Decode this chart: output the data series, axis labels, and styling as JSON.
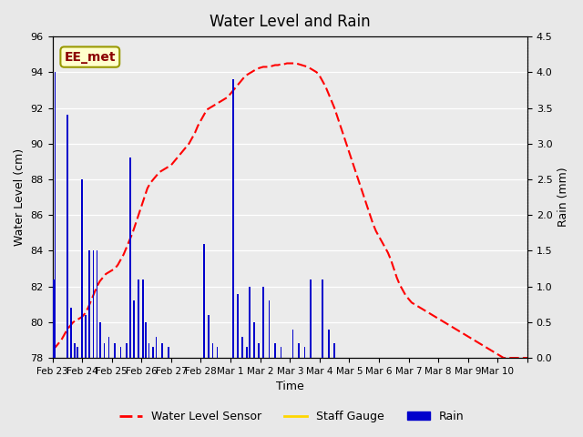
{
  "title": "Water Level and Rain",
  "xlabel": "Time",
  "ylabel_left": "Water Level (cm)",
  "ylabel_right": "Rain (mm)",
  "annotation_text": "EE_met",
  "annotation_color": "#8B0000",
  "annotation_bg": "#FFFFCC",
  "annotation_edge": "#999900",
  "ylim_left": [
    78,
    96
  ],
  "ylim_right": [
    0.0,
    4.5
  ],
  "yticks_left": [
    78,
    80,
    82,
    84,
    86,
    88,
    90,
    92,
    94,
    96
  ],
  "yticks_right": [
    0.0,
    0.5,
    1.0,
    1.5,
    2.0,
    2.5,
    3.0,
    3.5,
    4.0,
    4.5
  ],
  "bg_color": "#E8E8E8",
  "plot_bg_color": "#EBEBEB",
  "water_level_color": "#FF0000",
  "rain_color": "#0000CC",
  "staff_gauge_color": "#FFD700",
  "water_level_data": {
    "x": [
      0.0,
      0.1,
      0.2,
      0.3,
      0.4,
      0.5,
      0.6,
      0.7,
      0.8,
      0.9,
      1.0,
      1.1,
      1.2,
      1.3,
      1.4,
      1.5,
      1.6,
      1.7,
      1.8,
      1.9,
      2.0,
      2.1,
      2.2,
      2.3,
      2.4,
      2.5,
      2.6,
      2.7,
      2.8,
      2.9,
      3.0,
      3.1,
      3.2,
      3.3,
      3.4,
      3.5,
      3.6,
      3.7,
      3.8,
      3.9,
      4.0,
      4.1,
      4.2,
      4.3,
      4.4,
      4.5,
      4.6,
      4.7,
      4.8,
      4.9,
      5.0,
      5.1,
      5.2,
      5.3,
      5.4,
      5.5,
      5.6,
      5.7,
      5.8,
      5.9,
      6.0,
      6.1,
      6.2,
      6.3,
      6.4,
      6.5,
      6.6,
      6.7,
      6.8,
      6.9,
      7.0,
      7.1,
      7.2,
      7.3,
      7.4,
      7.5,
      7.6,
      7.7,
      7.8,
      7.9,
      8.0,
      8.1,
      8.2,
      8.3,
      8.4,
      8.5,
      8.6,
      8.7,
      8.8,
      8.9,
      9.0,
      9.1,
      9.2,
      9.3,
      9.4,
      9.5,
      9.6,
      9.7,
      9.8,
      9.9,
      10.0,
      10.1,
      10.2,
      10.3,
      10.4,
      10.5,
      10.6,
      10.7,
      10.8,
      10.9,
      11.0,
      11.1,
      11.2,
      11.3,
      11.4,
      11.5,
      11.6,
      11.7,
      11.8,
      11.9,
      12.0,
      12.1,
      12.2,
      12.3,
      12.4,
      12.5,
      12.6,
      12.7,
      12.8,
      12.9,
      13.0,
      13.1,
      13.2,
      13.3,
      13.4,
      13.5,
      13.6,
      13.7,
      13.8,
      13.9,
      14.0,
      14.1,
      14.2,
      14.3,
      14.4,
      14.5,
      14.6,
      14.7,
      14.8,
      14.9,
      15.0,
      15.1,
      15.2,
      15.3,
      15.4,
      15.5,
      15.6,
      15.7,
      15.8,
      15.9,
      16.0
    ],
    "y": [
      78.5,
      78.6,
      78.8,
      79.0,
      79.3,
      79.6,
      79.8,
      80.0,
      80.1,
      80.2,
      80.3,
      80.5,
      80.8,
      81.2,
      81.6,
      82.0,
      82.3,
      82.5,
      82.7,
      82.8,
      82.9,
      83.0,
      83.2,
      83.5,
      83.8,
      84.2,
      84.6,
      85.0,
      85.5,
      86.0,
      86.5,
      87.0,
      87.5,
      87.8,
      88.0,
      88.2,
      88.4,
      88.5,
      88.6,
      88.7,
      88.8,
      89.0,
      89.2,
      89.4,
      89.6,
      89.8,
      90.0,
      90.3,
      90.6,
      91.0,
      91.3,
      91.6,
      91.9,
      92.0,
      92.1,
      92.2,
      92.3,
      92.4,
      92.5,
      92.6,
      92.8,
      93.0,
      93.2,
      93.4,
      93.6,
      93.8,
      93.9,
      94.0,
      94.1,
      94.2,
      94.25,
      94.3,
      94.3,
      94.3,
      94.35,
      94.4,
      94.4,
      94.45,
      94.45,
      94.5,
      94.5,
      94.5,
      94.5,
      94.45,
      94.4,
      94.35,
      94.3,
      94.2,
      94.1,
      94.0,
      93.8,
      93.5,
      93.2,
      92.8,
      92.4,
      92.0,
      91.5,
      91.0,
      90.5,
      90.0,
      89.5,
      89.0,
      88.5,
      88.0,
      87.5,
      87.0,
      86.5,
      86.0,
      85.5,
      85.1,
      84.8,
      84.5,
      84.2,
      83.9,
      83.5,
      83.0,
      82.5,
      82.1,
      81.8,
      81.5,
      81.3,
      81.1,
      81.0,
      80.9,
      80.8,
      80.7,
      80.6,
      80.5,
      80.4,
      80.3,
      80.2,
      80.1,
      80.0,
      79.9,
      79.8,
      79.7,
      79.6,
      79.5,
      79.4,
      79.3,
      79.2,
      79.1,
      79.0,
      78.9,
      78.8,
      78.7,
      78.6,
      78.5,
      78.4,
      78.3,
      78.2,
      78.1,
      78.0,
      78.0,
      78.0,
      78.0,
      78.0,
      78.0,
      78.0,
      78.0,
      78.0
    ]
  },
  "rain_data": {
    "x": [
      0.04,
      0.09,
      0.5,
      0.62,
      0.75,
      0.85,
      1.0,
      1.12,
      1.25,
      1.38,
      1.5,
      1.62,
      1.75,
      1.9,
      2.1,
      2.3,
      2.5,
      2.62,
      2.75,
      2.9,
      3.05,
      3.15,
      3.25,
      3.38,
      3.5,
      3.7,
      3.9,
      5.1,
      5.25,
      5.4,
      5.55,
      6.1,
      6.25,
      6.4,
      6.55,
      6.65,
      6.8,
      6.95,
      7.1,
      7.3,
      7.5,
      7.7,
      8.1,
      8.3,
      8.5,
      8.7,
      9.1,
      9.3,
      9.5
    ],
    "y": [
      1.1,
      4.0,
      3.4,
      0.7,
      0.2,
      0.15,
      2.5,
      0.6,
      1.5,
      1.5,
      1.5,
      0.5,
      0.2,
      0.3,
      0.2,
      0.15,
      0.2,
      2.8,
      0.8,
      1.1,
      1.1,
      0.5,
      0.2,
      0.15,
      0.3,
      0.2,
      0.15,
      1.6,
      0.6,
      0.2,
      0.15,
      3.9,
      0.9,
      0.3,
      0.15,
      1.0,
      0.5,
      0.2,
      1.0,
      0.8,
      0.2,
      0.15,
      0.4,
      0.2,
      0.15,
      1.1,
      1.1,
      0.4,
      0.2
    ]
  },
  "xtick_positions": [
    0,
    1,
    2,
    3,
    4,
    5,
    6,
    7,
    8,
    9,
    10,
    11,
    12,
    13,
    14,
    15,
    16
  ],
  "xtick_labels": [
    "Feb 23",
    "Feb 24",
    "Feb 25",
    "Feb 26",
    "Feb 27",
    "Feb 28",
    "Mar 1",
    "Mar 2",
    "Mar 3",
    "Mar 4",
    "Mar 5",
    "Mar 6",
    "Mar 7",
    "Mar 8",
    "Mar 9",
    "Mar 10",
    ""
  ],
  "legend_labels": [
    "Water Level Sensor",
    "Staff Gauge",
    "Rain"
  ]
}
